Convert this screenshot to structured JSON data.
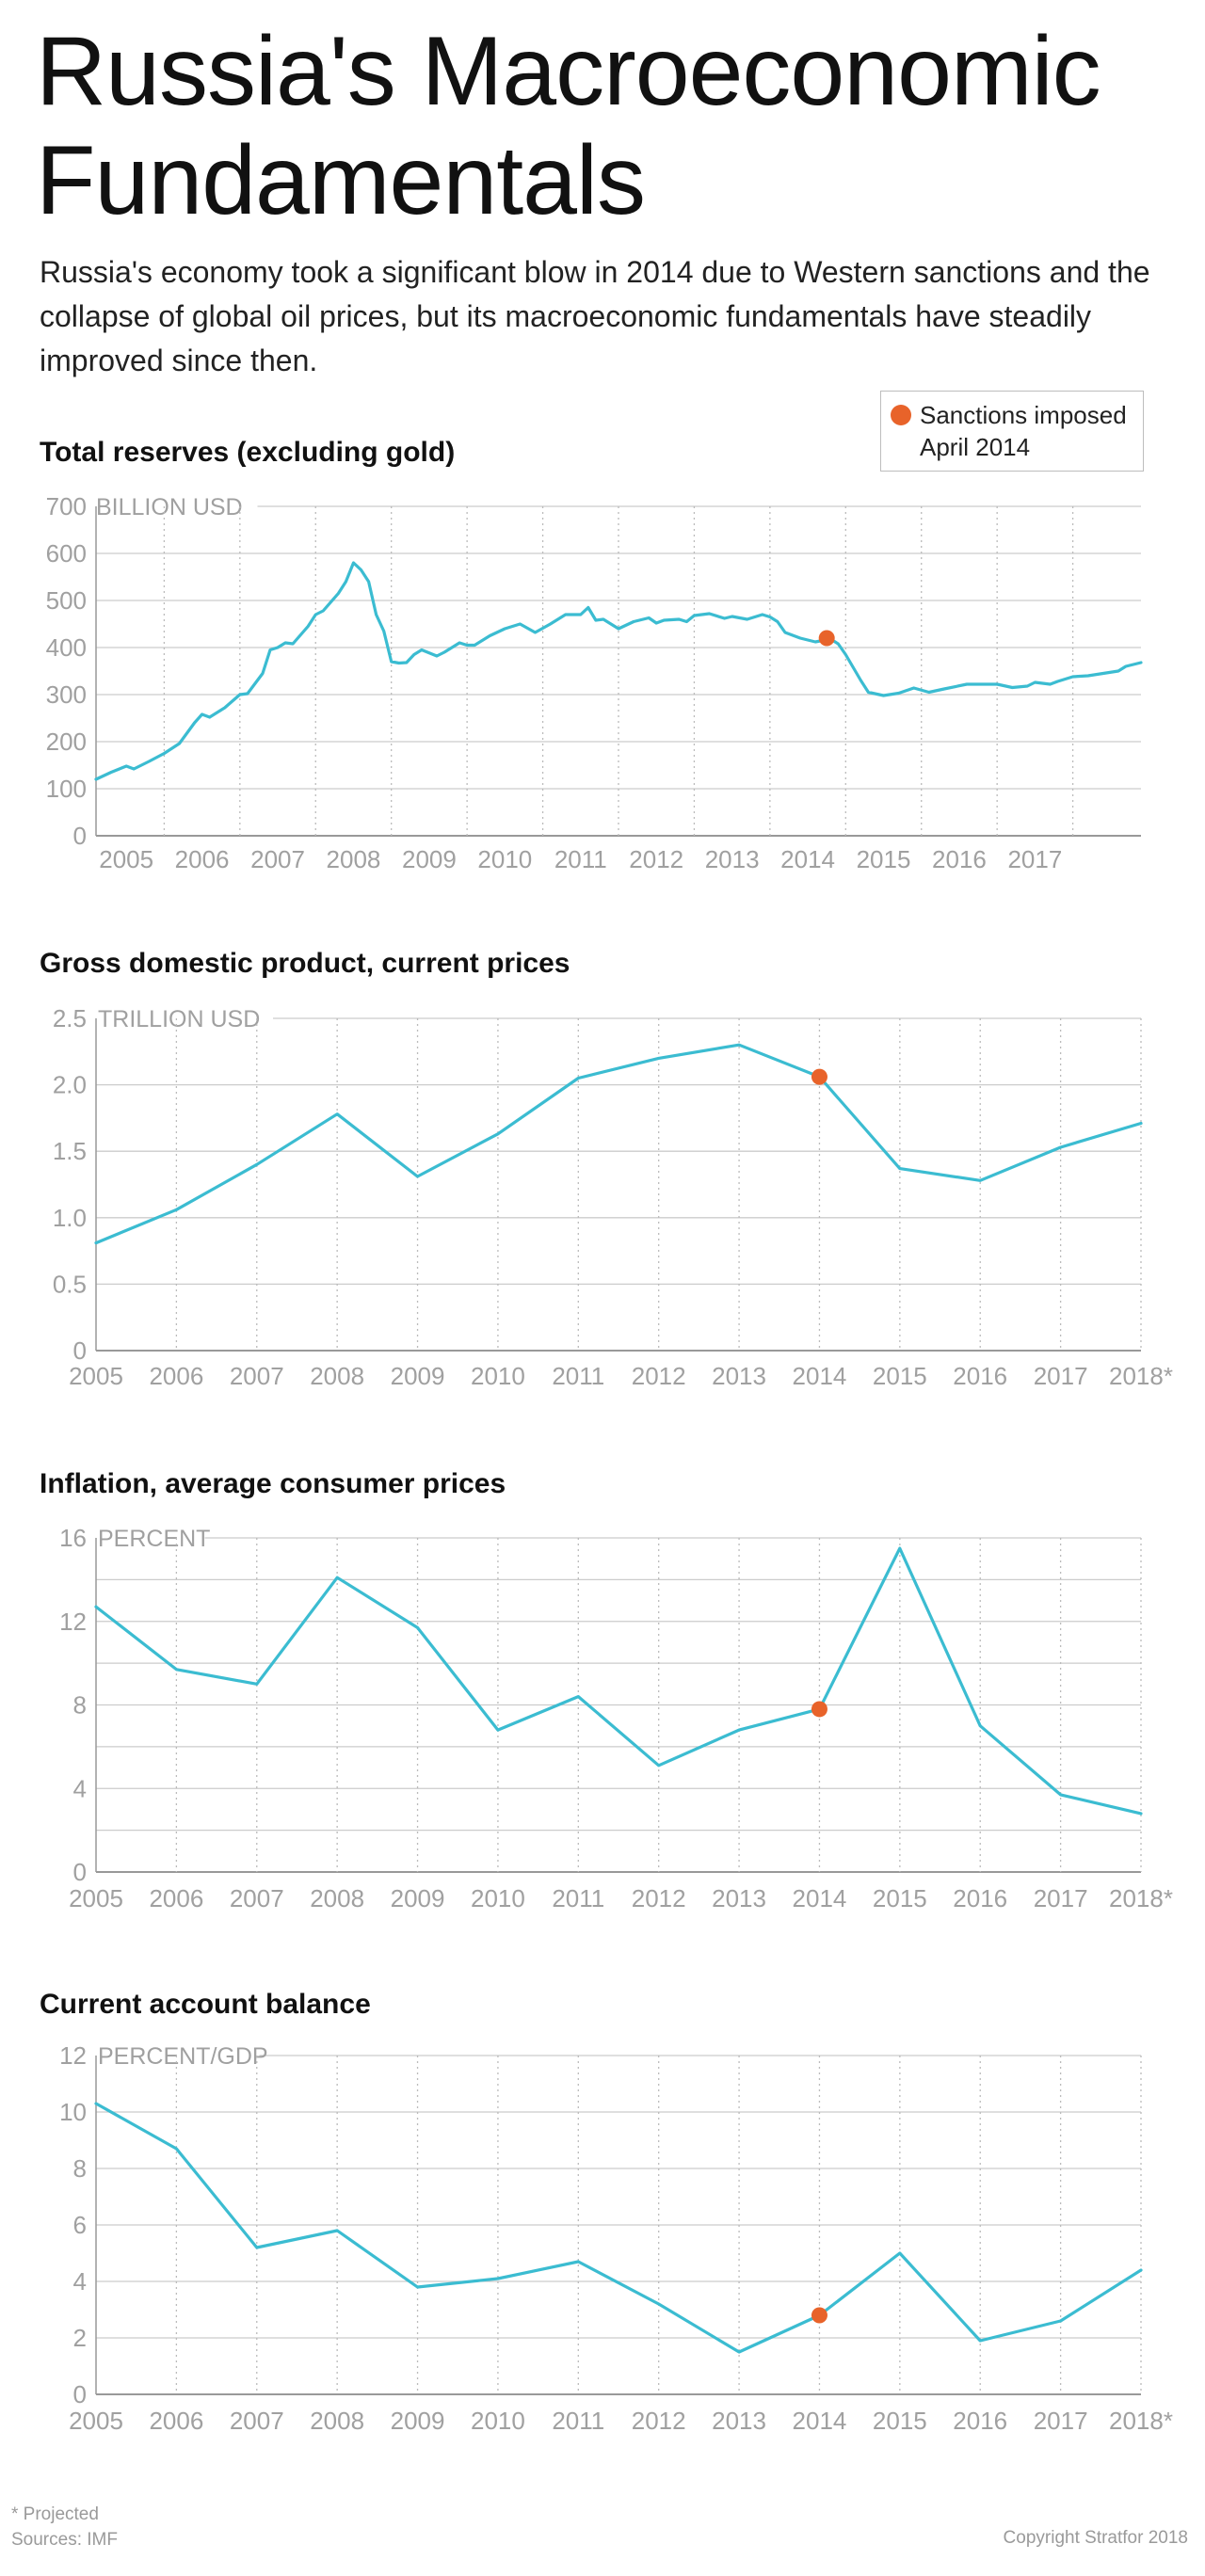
{
  "page": {
    "title_line1": "Russia's Macroeconomic",
    "title_line2": "Fundamentals",
    "subtitle": "Russia's economy took a significant blow in 2014 due to Western sanctions and the collapse of global oil prices, but its macroeconomic fundamentals have steadily improved since then.",
    "legend": {
      "line1": "Sanctions imposed",
      "line2": "April 2014",
      "marker_color": "#e8632a"
    },
    "footer": {
      "note": "* Projected",
      "sources": "Sources: IMF",
      "copyright": "Copyright Stratfor 2018"
    }
  },
  "colors": {
    "line": "#3bbcd1",
    "marker": "#e8632a",
    "grid": "#cccccc",
    "vgrid": "#bbbbbb",
    "axis_text": "#a0a0a0",
    "axis_line": "#999999"
  },
  "chart_data": [
    {
      "type": "line",
      "title": "Total reserves (excluding gold)",
      "unit_label": "BILLION USD",
      "ylim": [
        0,
        700
      ],
      "yticks": [
        0,
        100,
        200,
        300,
        400,
        500,
        600,
        700
      ],
      "xlim": [
        2004.1,
        2017.9
      ],
      "vlines": [
        2005,
        2006,
        2007,
        2008,
        2009,
        2010,
        2011,
        2012,
        2013,
        2014,
        2015,
        2016,
        2017
      ],
      "xtick_labels": [
        {
          "x": 2004.5,
          "label": "2005"
        },
        {
          "x": 2005.5,
          "label": "2006"
        },
        {
          "x": 2006.5,
          "label": "2007"
        },
        {
          "x": 2007.5,
          "label": "2008"
        },
        {
          "x": 2008.5,
          "label": "2009"
        },
        {
          "x": 2009.5,
          "label": "2010"
        },
        {
          "x": 2010.5,
          "label": "2011"
        },
        {
          "x": 2011.5,
          "label": "2012"
        },
        {
          "x": 2012.5,
          "label": "2013"
        },
        {
          "x": 2013.5,
          "label": "2014"
        },
        {
          "x": 2014.5,
          "label": "2015"
        },
        {
          "x": 2015.5,
          "label": "2016"
        },
        {
          "x": 2016.5,
          "label": "2017"
        }
      ],
      "x": [
        2004.1,
        2004.3,
        2004.5,
        2004.6,
        2004.8,
        2005.0,
        2005.2,
        2005.4,
        2005.5,
        2005.6,
        2005.8,
        2006.0,
        2006.1,
        2006.3,
        2006.4,
        2006.5,
        2006.6,
        2006.7,
        2006.9,
        2007.0,
        2007.1,
        2007.3,
        2007.4,
        2007.5,
        2007.6,
        2007.7,
        2007.8,
        2007.9,
        2008.0,
        2008.1,
        2008.2,
        2008.3,
        2008.4,
        2008.6,
        2008.7,
        2008.9,
        2009.0,
        2009.1,
        2009.3,
        2009.5,
        2009.7,
        2009.9,
        2010.1,
        2010.3,
        2010.5,
        2010.6,
        2010.7,
        2010.8,
        2011.0,
        2011.2,
        2011.4,
        2011.5,
        2011.6,
        2011.8,
        2011.9,
        2012.0,
        2012.2,
        2012.4,
        2012.5,
        2012.7,
        2012.9,
        2013.0,
        2013.1,
        2013.2,
        2013.4,
        2013.6,
        2013.8,
        2013.9,
        2014.0,
        2014.2,
        2014.3,
        2014.5,
        2014.7,
        2014.9,
        2015.1,
        2015.3,
        2015.6,
        2015.8,
        2016.0,
        2016.2,
        2016.4,
        2016.5,
        2016.7,
        2016.8,
        2017.0,
        2017.2,
        2017.4,
        2017.6,
        2017.7,
        2017.9
      ],
      "y": [
        120,
        135,
        148,
        142,
        158,
        175,
        196,
        240,
        258,
        252,
        272,
        300,
        302,
        345,
        395,
        400,
        410,
        408,
        445,
        470,
        478,
        515,
        540,
        580,
        565,
        540,
        470,
        435,
        370,
        367,
        368,
        385,
        395,
        382,
        390,
        410,
        405,
        405,
        425,
        440,
        450,
        432,
        450,
        470,
        470,
        485,
        458,
        460,
        440,
        455,
        463,
        452,
        458,
        460,
        455,
        468,
        472,
        462,
        466,
        460,
        470,
        465,
        455,
        432,
        420,
        412,
        418,
        408,
        385,
        330,
        305,
        298,
        303,
        314,
        305,
        312,
        322,
        322,
        322,
        315,
        318,
        326,
        322,
        328,
        338,
        340,
        345,
        350,
        360,
        368
      ],
      "marker": {
        "x": 2013.75,
        "y": 420
      }
    },
    {
      "type": "line",
      "title": "Gross domestic product, current prices",
      "unit_label": "TRILLION USD",
      "ylim": [
        0,
        2.5
      ],
      "yticks": [
        0,
        0.5,
        1.0,
        1.5,
        2.0,
        2.5
      ],
      "ytick_labels": [
        "0",
        "0.5",
        "1.0",
        "1.5",
        "2.0",
        "2.5"
      ],
      "xlim": [
        2005,
        2018
      ],
      "vlines": [
        2006,
        2007,
        2008,
        2009,
        2010,
        2011,
        2012,
        2013,
        2014,
        2015,
        2016,
        2017,
        2018
      ],
      "xtick_labels": [
        {
          "x": 2005,
          "label": "2005"
        },
        {
          "x": 2006,
          "label": "2006"
        },
        {
          "x": 2007,
          "label": "2007"
        },
        {
          "x": 2008,
          "label": "2008"
        },
        {
          "x": 2009,
          "label": "2009"
        },
        {
          "x": 2010,
          "label": "2010"
        },
        {
          "x": 2011,
          "label": "2011"
        },
        {
          "x": 2012,
          "label": "2012"
        },
        {
          "x": 2013,
          "label": "2013"
        },
        {
          "x": 2014,
          "label": "2014"
        },
        {
          "x": 2015,
          "label": "2015"
        },
        {
          "x": 2016,
          "label": "2016"
        },
        {
          "x": 2017,
          "label": "2017"
        },
        {
          "x": 2018,
          "label": "2018*"
        }
      ],
      "x": [
        2005,
        2006,
        2007,
        2008,
        2009,
        2010,
        2011,
        2012,
        2013,
        2014,
        2015,
        2016,
        2017,
        2018
      ],
      "y": [
        0.81,
        1.06,
        1.4,
        1.78,
        1.31,
        1.63,
        2.05,
        2.2,
        2.3,
        2.06,
        1.37,
        1.28,
        1.53,
        1.71
      ],
      "marker": {
        "x": 2014,
        "y": 2.06
      }
    },
    {
      "type": "line",
      "title": "Inflation, average consumer prices",
      "unit_label": "PERCENT",
      "ylim": [
        0,
        16
      ],
      "yticks": [
        0,
        2,
        4,
        6,
        8,
        10,
        12,
        14,
        16
      ],
      "ytick_labels": [
        "0",
        "",
        "4",
        "",
        "8",
        "",
        "12",
        "",
        "16"
      ],
      "xlim": [
        2005,
        2018
      ],
      "vlines": [
        2006,
        2007,
        2008,
        2009,
        2010,
        2011,
        2012,
        2013,
        2014,
        2015,
        2016,
        2017,
        2018
      ],
      "xtick_labels": [
        {
          "x": 2005,
          "label": "2005"
        },
        {
          "x": 2006,
          "label": "2006"
        },
        {
          "x": 2007,
          "label": "2007"
        },
        {
          "x": 2008,
          "label": "2008"
        },
        {
          "x": 2009,
          "label": "2009"
        },
        {
          "x": 2010,
          "label": "2010"
        },
        {
          "x": 2011,
          "label": "2011"
        },
        {
          "x": 2012,
          "label": "2012"
        },
        {
          "x": 2013,
          "label": "2013"
        },
        {
          "x": 2014,
          "label": "2014"
        },
        {
          "x": 2015,
          "label": "2015"
        },
        {
          "x": 2016,
          "label": "2016"
        },
        {
          "x": 2017,
          "label": "2017"
        },
        {
          "x": 2018,
          "label": "2018*"
        }
      ],
      "x": [
        2005,
        2006,
        2007,
        2008,
        2009,
        2010,
        2011,
        2012,
        2013,
        2014,
        2015,
        2016,
        2017,
        2018
      ],
      "y": [
        12.7,
        9.7,
        9.0,
        14.1,
        11.7,
        6.8,
        8.4,
        5.1,
        6.8,
        7.8,
        15.5,
        7.0,
        3.7,
        2.8
      ],
      "marker": {
        "x": 2014,
        "y": 7.8
      }
    },
    {
      "type": "line",
      "title": "Current account balance",
      "unit_label": "PERCENT/GDP",
      "ylim": [
        0,
        12
      ],
      "yticks": [
        0,
        2,
        4,
        6,
        8,
        10,
        12
      ],
      "xlim": [
        2005,
        2018
      ],
      "vlines": [
        2006,
        2007,
        2008,
        2009,
        2010,
        2011,
        2012,
        2013,
        2014,
        2015,
        2016,
        2017,
        2018
      ],
      "xtick_labels": [
        {
          "x": 2005,
          "label": "2005"
        },
        {
          "x": 2006,
          "label": "2006"
        },
        {
          "x": 2007,
          "label": "2007"
        },
        {
          "x": 2008,
          "label": "2008"
        },
        {
          "x": 2009,
          "label": "2009"
        },
        {
          "x": 2010,
          "label": "2010"
        },
        {
          "x": 2011,
          "label": "2011"
        },
        {
          "x": 2012,
          "label": "2012"
        },
        {
          "x": 2013,
          "label": "2013"
        },
        {
          "x": 2014,
          "label": "2014"
        },
        {
          "x": 2015,
          "label": "2015"
        },
        {
          "x": 2016,
          "label": "2016"
        },
        {
          "x": 2017,
          "label": "2017"
        },
        {
          "x": 2018,
          "label": "2018*"
        }
      ],
      "x": [
        2005,
        2006,
        2007,
        2008,
        2009,
        2010,
        2011,
        2012,
        2013,
        2014,
        2015,
        2016,
        2017,
        2018
      ],
      "y": [
        10.3,
        8.7,
        5.2,
        5.8,
        3.8,
        4.1,
        4.7,
        3.2,
        1.5,
        2.8,
        5.0,
        1.9,
        2.6,
        4.4
      ],
      "marker": {
        "x": 2014,
        "y": 2.8
      }
    }
  ]
}
